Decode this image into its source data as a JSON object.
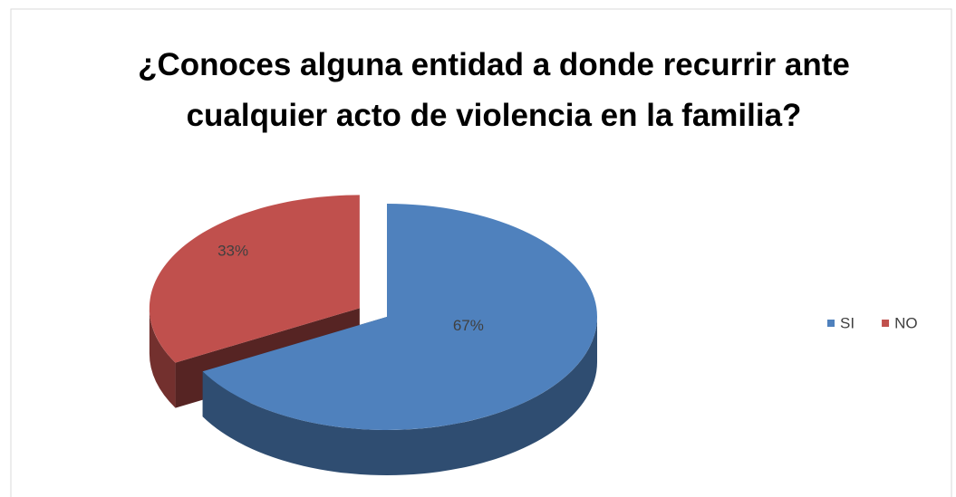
{
  "chart_data": {
    "type": "pie3d",
    "title": "¿Conoces alguna entidad a donde recurrir ante cualquier acto de violencia en la familia?",
    "categories": [
      "SI",
      "NO"
    ],
    "values": [
      67,
      33
    ],
    "value_labels": [
      "67%",
      "33%"
    ],
    "colors": [
      "#4f81bd",
      "#c0504d"
    ],
    "legend": "right"
  }
}
